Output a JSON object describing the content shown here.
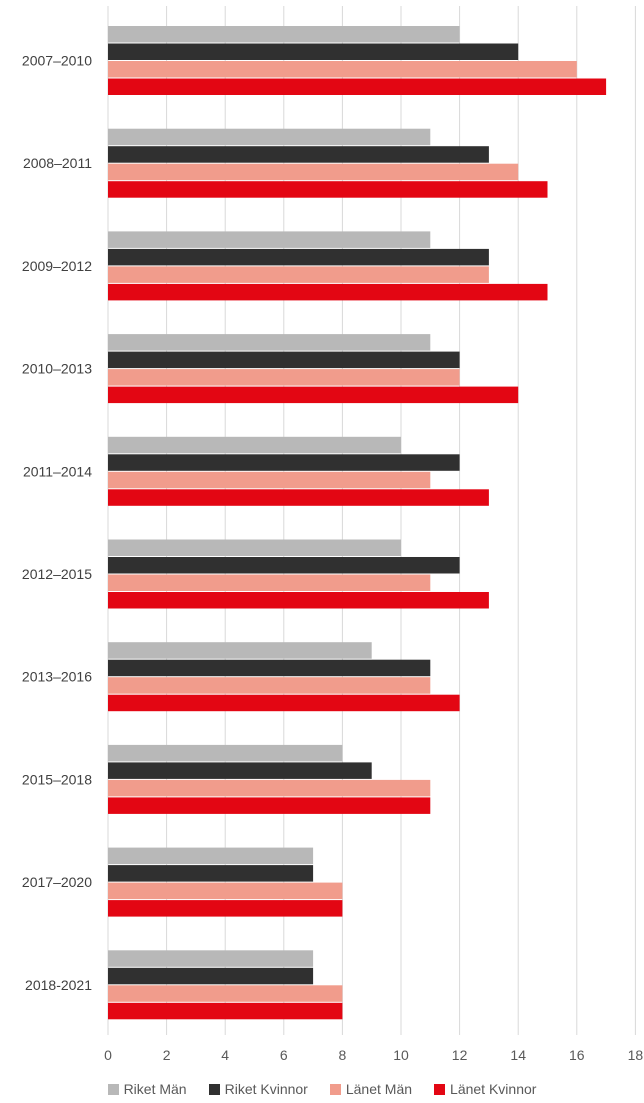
{
  "chart_data": {
    "type": "bar",
    "orientation": "horizontal",
    "title": "",
    "xlabel": "",
    "ylabel": "",
    "xlim": [
      0,
      18
    ],
    "x_ticks": [
      "0",
      "2",
      "4",
      "6",
      "8",
      "10",
      "12",
      "14",
      "16",
      "18"
    ],
    "grid": true,
    "legend_position": "bottom",
    "categories": [
      "2007–2010",
      "2008–2011",
      "2009–2012",
      "2010–2013",
      "2011–2014",
      "2012–2015",
      "2013–2016",
      "2015–2018",
      "2017–2020",
      "2018-2021"
    ],
    "series": [
      {
        "name": "Riket Män",
        "color": "#b8b8b8",
        "values": [
          12,
          11,
          11,
          11,
          10,
          10,
          9,
          8,
          7,
          7
        ]
      },
      {
        "name": "Riket Kvinnor",
        "color": "#303030",
        "values": [
          14,
          13,
          13,
          12,
          12,
          12,
          11,
          9,
          7,
          7
        ]
      },
      {
        "name": "Länet Män",
        "color": "#f19c8c",
        "values": [
          16,
          14,
          13,
          12,
          11,
          11,
          11,
          11,
          8,
          8
        ]
      },
      {
        "name": "Länet Kvinnor",
        "color": "#e30613",
        "values": [
          17,
          15,
          15,
          14,
          13,
          13,
          12,
          11,
          8,
          8
        ]
      }
    ]
  }
}
